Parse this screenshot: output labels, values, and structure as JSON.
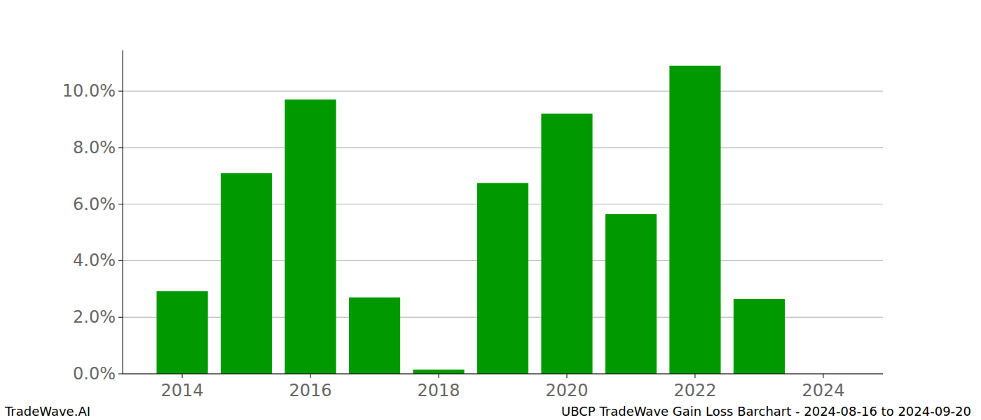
{
  "chart_data": {
    "type": "bar",
    "title": "UBCP TradeWave Gain Loss Barchart - 2024-08-16 to 2024-09-20",
    "annotations": [
      "TradeWave.AI"
    ],
    "x": [
      2014,
      2015,
      2016,
      2017,
      2018,
      2019,
      2020,
      2021,
      2022,
      2023
    ],
    "values": [
      2.92,
      7.1,
      9.7,
      2.7,
      0.15,
      6.75,
      9.2,
      5.65,
      10.9,
      2.65
    ],
    "color": "#009900",
    "xlim": [
      2013.07,
      2024.93
    ],
    "xticks": [
      2014,
      2016,
      2018,
      2020,
      2022,
      2024
    ],
    "ylim": [
      0,
      11.44
    ],
    "yticks": [
      {
        "value": 0,
        "label": "0.0%"
      },
      {
        "value": 2,
        "label": "2.0%"
      },
      {
        "value": 4,
        "label": "4.0%"
      },
      {
        "value": 6,
        "label": "6.0%"
      },
      {
        "value": 8,
        "label": "8.0%"
      },
      {
        "value": 10,
        "label": "10.0%"
      }
    ],
    "grid": true
  }
}
